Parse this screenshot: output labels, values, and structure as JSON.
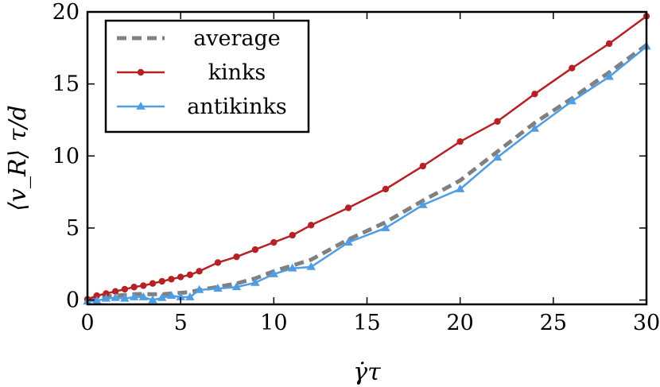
{
  "chart_data": {
    "type": "line",
    "xlabel": "γ̇τ",
    "ylabel": "⟨v_R⟩ τ/d",
    "xlim": [
      0,
      30
    ],
    "ylim": [
      -0.3,
      20
    ],
    "xticks": [
      0,
      5,
      10,
      15,
      20,
      25,
      30
    ],
    "yticks": [
      0,
      5,
      10,
      15,
      20
    ],
    "grid": false,
    "legend_position": "top-left",
    "series": [
      {
        "name": "average",
        "style": "dashed",
        "marker": "none",
        "color": "#808080",
        "x": [
          0,
          0.5,
          1,
          1.5,
          2,
          2.5,
          3,
          3.5,
          4,
          4.5,
          5,
          5.5,
          6,
          7,
          8,
          9,
          10,
          11,
          12,
          14,
          16,
          18,
          20,
          22,
          24,
          26,
          28,
          30
        ],
        "y": [
          0,
          0.15,
          0.25,
          0.3,
          0.35,
          0.4,
          0.42,
          0.4,
          0.4,
          0.45,
          0.5,
          0.55,
          0.7,
          0.9,
          1.15,
          1.5,
          2.0,
          2.4,
          2.8,
          4.2,
          5.4,
          6.9,
          8.3,
          10.3,
          12.3,
          14.0,
          15.8,
          17.7
        ]
      },
      {
        "name": "kinks",
        "style": "solid",
        "marker": "circle",
        "color": "#b52125",
        "x": [
          0,
          0.5,
          1,
          1.5,
          2,
          2.5,
          3,
          3.5,
          4,
          4.5,
          5,
          5.5,
          6,
          7,
          8,
          9,
          10,
          11,
          12,
          14,
          16,
          18,
          20,
          22,
          24,
          26,
          28,
          30
        ],
        "y": [
          0.05,
          0.3,
          0.45,
          0.6,
          0.75,
          0.9,
          1.0,
          1.15,
          1.3,
          1.45,
          1.6,
          1.75,
          2.0,
          2.6,
          3.0,
          3.5,
          4.0,
          4.5,
          5.2,
          6.4,
          7.7,
          9.3,
          11.0,
          12.4,
          14.3,
          16.1,
          17.8,
          19.7
        ]
      },
      {
        "name": "antikinks",
        "style": "solid",
        "marker": "triangle",
        "color": "#4f9de3",
        "x": [
          0,
          0.5,
          1,
          1.5,
          2,
          2.5,
          3,
          3.5,
          4,
          4.5,
          5,
          5.5,
          6,
          7,
          8,
          9,
          10,
          11,
          12,
          14,
          16,
          18,
          20,
          22,
          24,
          26,
          28,
          30
        ],
        "y": [
          -0.1,
          -0.05,
          0.1,
          0.15,
          0.1,
          0.2,
          0.2,
          0.0,
          0.15,
          0.3,
          0.2,
          0.2,
          0.7,
          0.8,
          0.9,
          1.2,
          1.8,
          2.2,
          2.3,
          4.0,
          5.0,
          6.6,
          7.7,
          9.9,
          11.9,
          13.8,
          15.5,
          17.6
        ]
      }
    ]
  }
}
